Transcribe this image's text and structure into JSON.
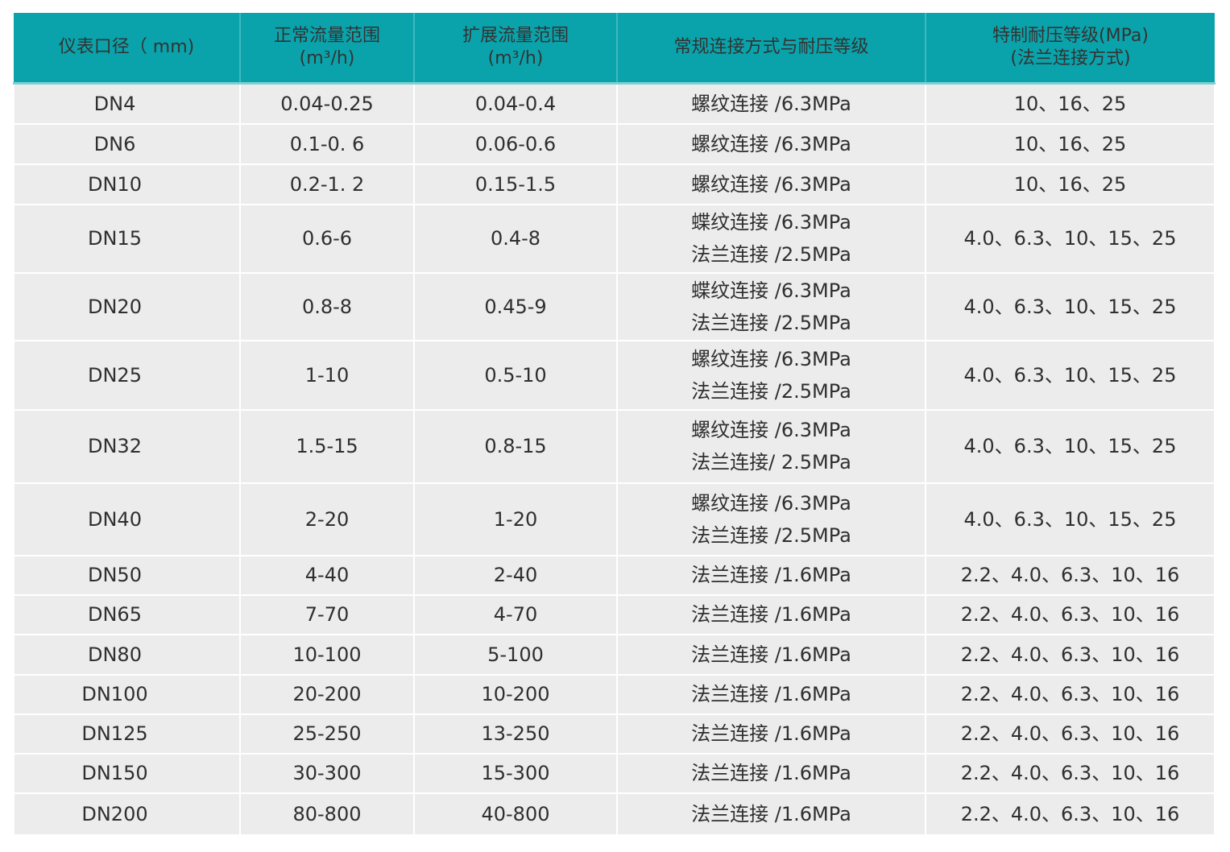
{
  "table": {
    "headers": [
      {
        "lines": [
          "仪表口径（ mm)"
        ]
      },
      {
        "lines": [
          "正常流量范围",
          "(m³/h)"
        ]
      },
      {
        "lines": [
          "扩展流量范围",
          "(m³/h)"
        ]
      },
      {
        "lines": [
          "常规连接方式与耐压等级"
        ]
      },
      {
        "lines": [
          "特制耐压等级(MPa)",
          "(法兰连接方式)"
        ]
      }
    ],
    "rows": [
      {
        "size": "DN4",
        "normal": "0.04-0.25",
        "extended": "0.04-0.4",
        "connection": [
          "螺纹连接 /6.3MPa"
        ],
        "special": "10、16、25"
      },
      {
        "size": "DN6",
        "normal": "0.1-0. 6",
        "extended": "0.06-0.6",
        "connection": [
          "螺纹连接 /6.3MPa"
        ],
        "special": "10、16、25"
      },
      {
        "size": "DN10",
        "normal": "0.2-1. 2",
        "extended": "0.15-1.5",
        "connection": [
          "螺纹连接 /6.3MPa"
        ],
        "special": "10、16、25"
      },
      {
        "size": "DN15",
        "normal": "0.6-6",
        "extended": "0.4-8",
        "connection": [
          "蝶纹连接 /6.3MPa",
          "法兰连接 /2.5MPa"
        ],
        "special": "4.0、6.3、10、15、25"
      },
      {
        "size": "DN20",
        "normal": "0.8-8",
        "extended": "0.45-9",
        "connection": [
          "蝶纹连接 /6.3MPa",
          "法兰连接 /2.5MPa"
        ],
        "special": "4.0、6.3、10、15、25"
      },
      {
        "size": "DN25",
        "normal": "1-10",
        "extended": "0.5-10",
        "connection": [
          "螺纹连接 /6.3MPa",
          "法兰连接 /2.5MPa"
        ],
        "special": "4.0、6.3、10、15、25"
      },
      {
        "size": "DN32",
        "normal": "1.5-15",
        "extended": "0.8-15",
        "connection": [
          "螺纹连接 /6.3MPa",
          "法兰连接/ 2.5MPa"
        ],
        "special": "4.0、6.3、10、15、25"
      },
      {
        "size": "DN40",
        "normal": "2-20",
        "extended": "1-20",
        "connection": [
          "螺纹连接 /6.3MPa",
          "法兰连接 /2.5MPa"
        ],
        "special": "4.0、6.3、10、15、25"
      },
      {
        "size": "DN50",
        "normal": "4-40",
        "extended": "2-40",
        "connection": [
          "法兰连接 /1.6MPa"
        ],
        "special": "2.2、4.0、6.3、10、16"
      },
      {
        "size": "DN65",
        "normal": "7-70",
        "extended": "4-70",
        "connection": [
          "法兰连接 /1.6MPa"
        ],
        "special": "2.2、4.0、6.3、10、16"
      },
      {
        "size": "DN80",
        "normal": "10-100",
        "extended": "5-100",
        "connection": [
          "法兰连接 /1.6MPa"
        ],
        "special": "2.2、4.0、6.3、10、16"
      },
      {
        "size": "DN100",
        "normal": "20-200",
        "extended": "10-200",
        "connection": [
          "法兰连接 /1.6MPa"
        ],
        "special": "2.2、4.0、6.3、10、16"
      },
      {
        "size": "DN125",
        "normal": "25-250",
        "extended": "13-250",
        "connection": [
          "法兰连接 /1.6MPa"
        ],
        "special": "2.2、4.0、6.3、10、16"
      },
      {
        "size": "DN150",
        "normal": "30-300",
        "extended": "15-300",
        "connection": [
          "法兰连接 /1.6MPa"
        ],
        "special": "2.2、4.0、6.3、10、16"
      },
      {
        "size": "DN200",
        "normal": "80-800",
        "extended": "40-800",
        "connection": [
          "法兰连接 /1.6MPa"
        ],
        "special": "2.2、4.0、6.3、10、16"
      }
    ]
  },
  "colors": {
    "header": "#0aa3ab",
    "row": "#ececec"
  }
}
